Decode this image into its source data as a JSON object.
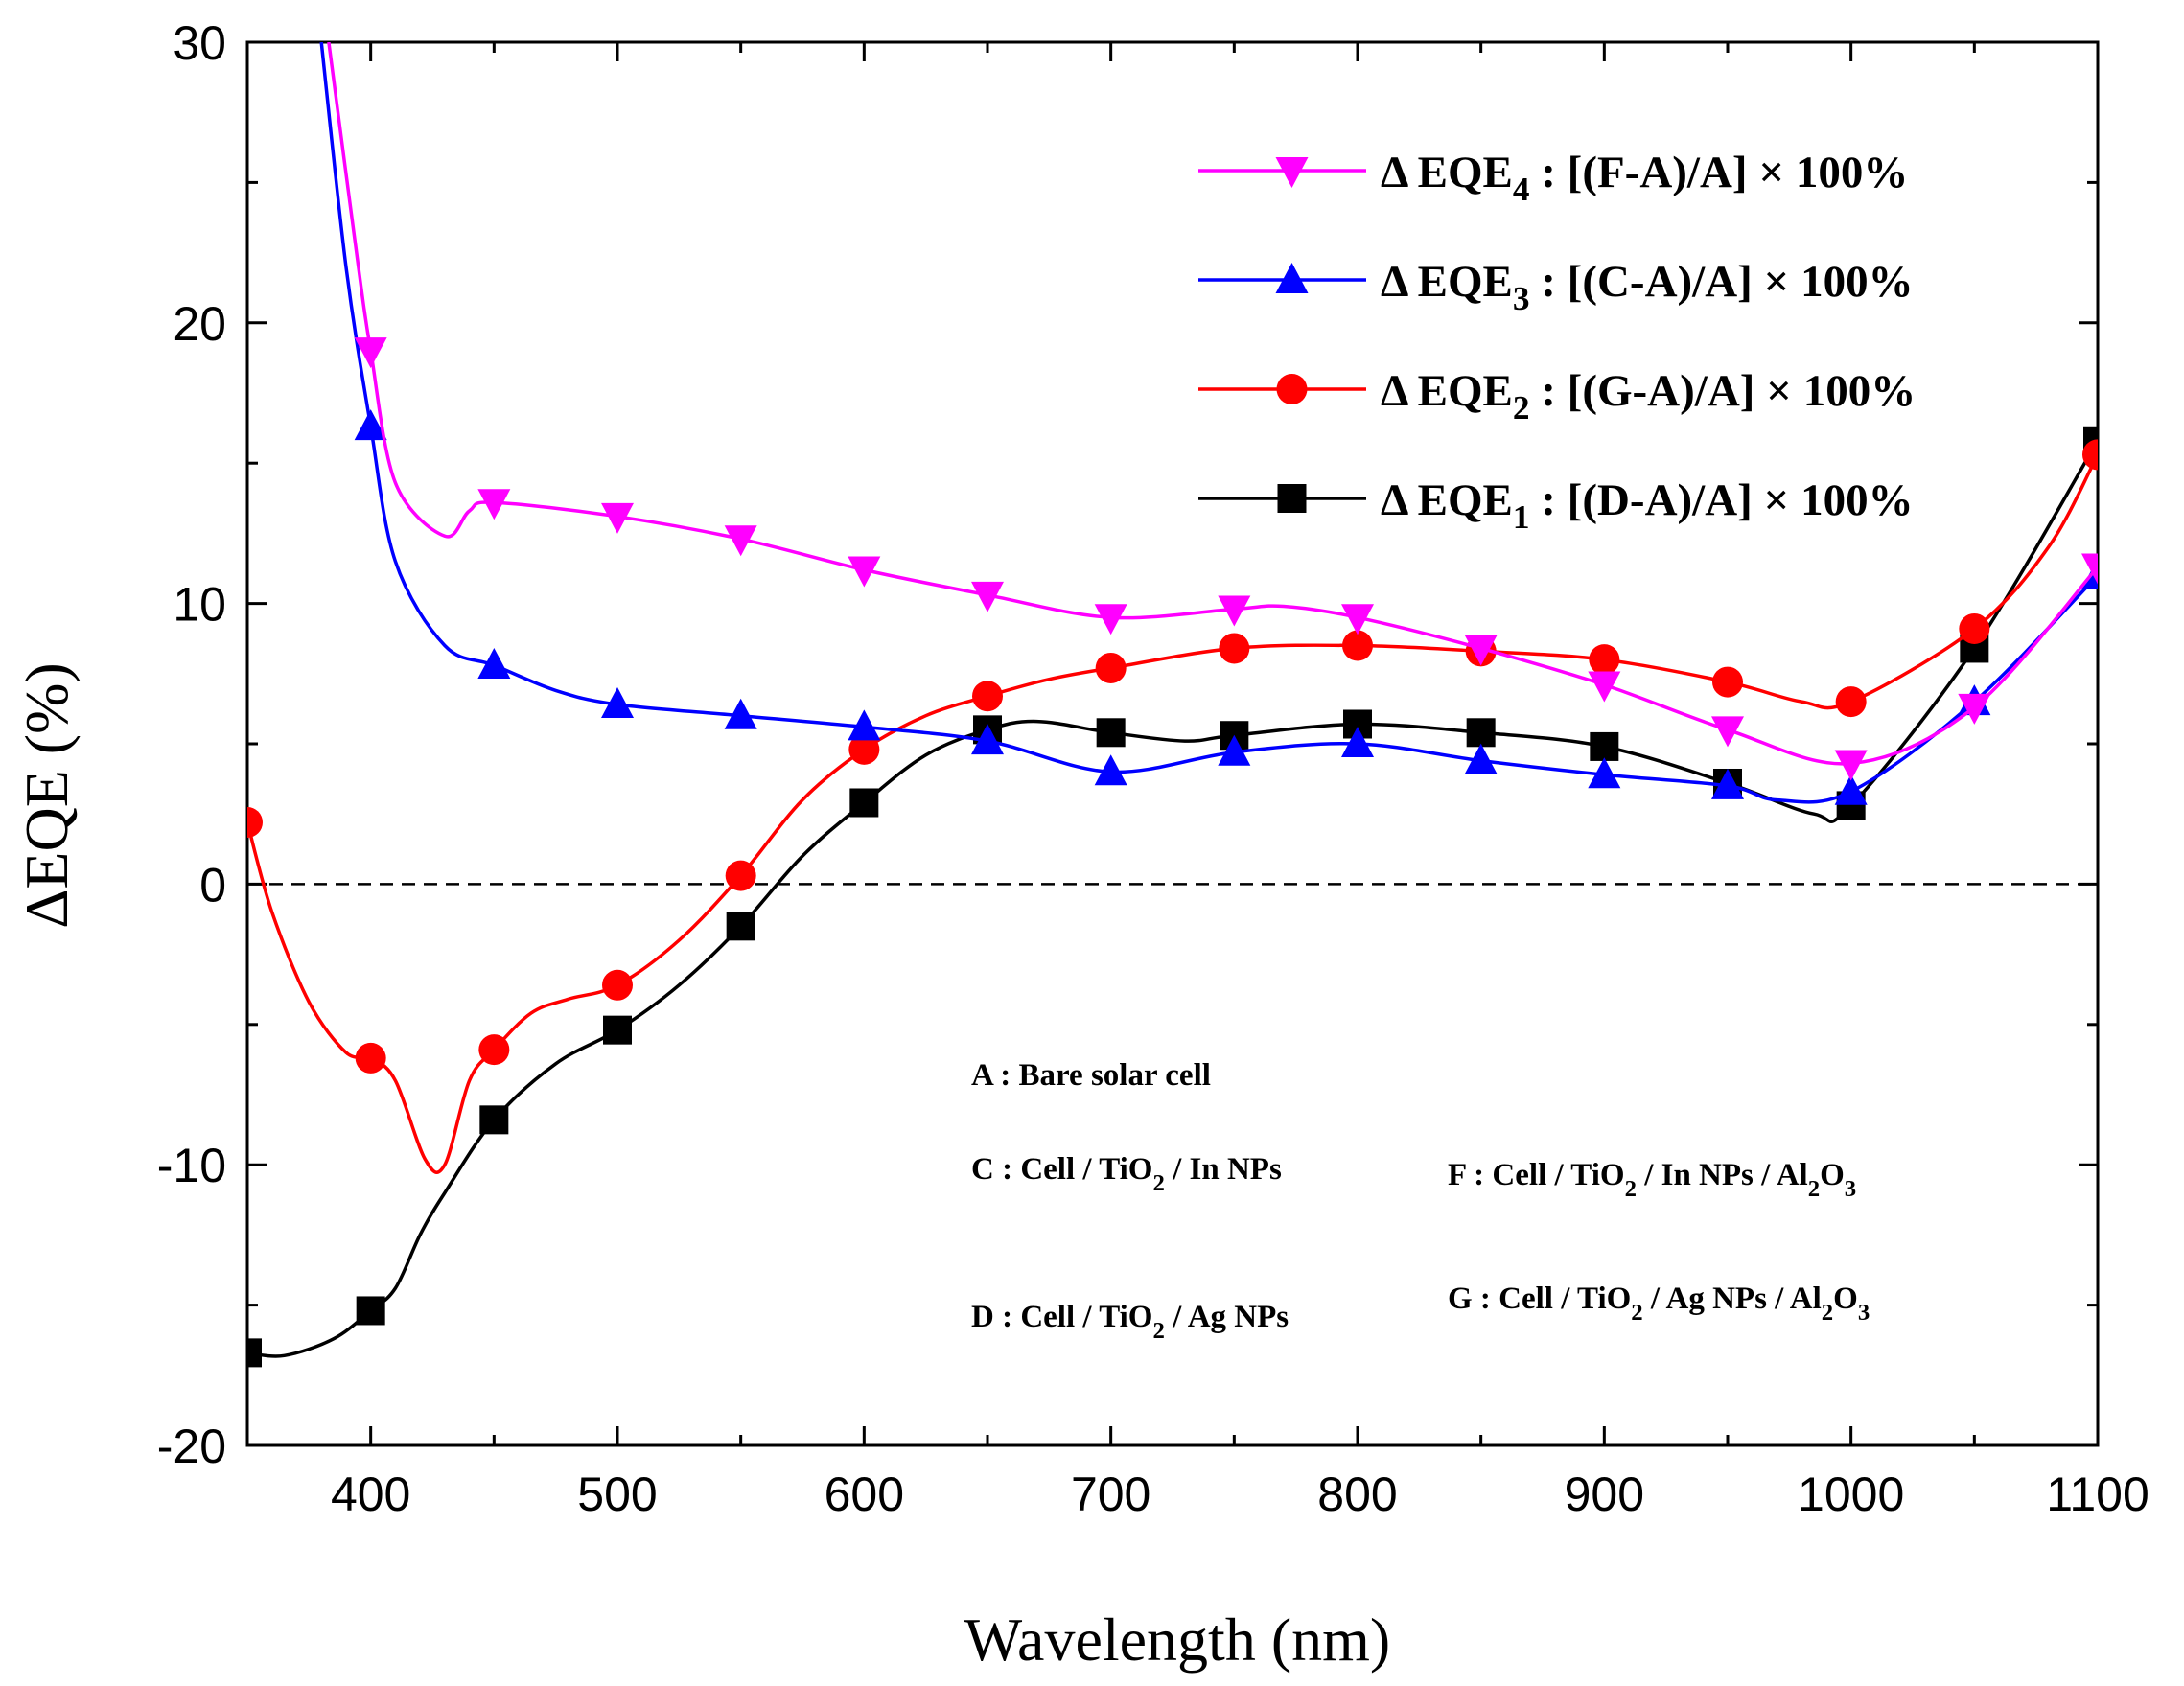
{
  "chart_data": {
    "type": "line",
    "xlabel": "Wavelength (nm)",
    "ylabel": "ΔEQE (%)",
    "xlim": [
      350,
      1100
    ],
    "ylim": [
      -20,
      30
    ],
    "x_ticks": [
      400,
      500,
      600,
      700,
      800,
      900,
      1000,
      1100
    ],
    "y_ticks": [
      -20,
      -10,
      0,
      10,
      20,
      30
    ],
    "x_tick_labels": [
      "400",
      "500",
      "600",
      "700",
      "800",
      "900",
      "1000",
      "1100"
    ],
    "y_tick_labels": [
      "-20",
      "-10",
      "0",
      "10",
      "20",
      "30"
    ],
    "reference_line": {
      "y": 0,
      "style": "dashed"
    },
    "legend_position": "top-right",
    "series": [
      {
        "id": "eqe4",
        "name": "Δ EQE4 : [(F-A)/A] × 100%",
        "label_prefix": "Δ EQE",
        "label_sub": "4",
        "label_suffix": " : [(F-A)/A] × 100%",
        "color": "#ff00ff",
        "marker": "triangle-down",
        "points": [
          [
            400,
            19.0
          ],
          [
            450,
            13.6
          ],
          [
            500,
            13.1
          ],
          [
            550,
            12.3
          ],
          [
            600,
            11.2
          ],
          [
            650,
            10.3
          ],
          [
            700,
            9.5
          ],
          [
            750,
            9.8
          ],
          [
            800,
            9.5
          ],
          [
            850,
            8.4
          ],
          [
            900,
            7.1
          ],
          [
            950,
            5.5
          ],
          [
            1000,
            4.3
          ],
          [
            1050,
            6.3
          ],
          [
            1100,
            11.3
          ]
        ],
        "curve": [
          [
            383,
            30
          ],
          [
            395,
            22
          ],
          [
            400,
            19.0
          ],
          [
            410,
            14.3
          ],
          [
            430,
            12.4
          ],
          [
            440,
            13.3
          ],
          [
            450,
            13.6
          ],
          [
            500,
            13.1
          ],
          [
            550,
            12.3
          ],
          [
            600,
            11.2
          ],
          [
            650,
            10.3
          ],
          [
            700,
            9.5
          ],
          [
            750,
            9.8
          ],
          [
            770,
            9.9
          ],
          [
            800,
            9.5
          ],
          [
            850,
            8.4
          ],
          [
            900,
            7.1
          ],
          [
            950,
            5.5
          ],
          [
            1000,
            4.3
          ],
          [
            1050,
            6.3
          ],
          [
            1100,
            11.3
          ]
        ]
      },
      {
        "id": "eqe3",
        "name": "Δ EQE3 : [(C-A)/A] × 100%",
        "label_prefix": "Δ EQE",
        "label_sub": "3",
        "label_suffix": " : [(C-A)/A] × 100%",
        "color": "#0000ff",
        "marker": "triangle-up",
        "points": [
          [
            400,
            16.3
          ],
          [
            450,
            7.8
          ],
          [
            500,
            6.4
          ],
          [
            550,
            6.0
          ],
          [
            600,
            5.6
          ],
          [
            650,
            5.1
          ],
          [
            700,
            4.0
          ],
          [
            750,
            4.7
          ],
          [
            800,
            5.0
          ],
          [
            850,
            4.4
          ],
          [
            900,
            3.9
          ],
          [
            950,
            3.5
          ],
          [
            1000,
            3.3
          ],
          [
            1050,
            6.5
          ],
          [
            1100,
            11.0
          ]
        ],
        "curve": [
          [
            380,
            30
          ],
          [
            390,
            22
          ],
          [
            400,
            16.3
          ],
          [
            410,
            11.5
          ],
          [
            430,
            8.5
          ],
          [
            450,
            7.8
          ],
          [
            475,
            6.9
          ],
          [
            500,
            6.4
          ],
          [
            550,
            6.0
          ],
          [
            600,
            5.6
          ],
          [
            650,
            5.1
          ],
          [
            700,
            4.0
          ],
          [
            750,
            4.7
          ],
          [
            800,
            5.0
          ],
          [
            850,
            4.4
          ],
          [
            900,
            3.9
          ],
          [
            950,
            3.5
          ],
          [
            970,
            3.0
          ],
          [
            1000,
            3.3
          ],
          [
            1050,
            6.5
          ],
          [
            1100,
            11.0
          ]
        ]
      },
      {
        "id": "eqe2",
        "name": "Δ EQE2 : [(G-A)/A] × 100%",
        "label_prefix": "Δ EQE",
        "label_sub": "2",
        "label_suffix": " : [(G-A)/A] × 100%",
        "color": "#ff0000",
        "marker": "circle",
        "points": [
          [
            350,
            2.2
          ],
          [
            400,
            -6.2
          ],
          [
            450,
            -5.9
          ],
          [
            500,
            -3.6
          ],
          [
            550,
            0.3
          ],
          [
            600,
            4.8
          ],
          [
            650,
            6.7
          ],
          [
            700,
            7.7
          ],
          [
            750,
            8.4
          ],
          [
            800,
            8.5
          ],
          [
            850,
            8.3
          ],
          [
            900,
            8.0
          ],
          [
            950,
            7.2
          ],
          [
            1000,
            6.5
          ],
          [
            1050,
            9.1
          ],
          [
            1100,
            15.3
          ]
        ],
        "curve": [
          [
            350,
            2.2
          ],
          [
            360,
            -1.0
          ],
          [
            375,
            -4.2
          ],
          [
            390,
            -6.0
          ],
          [
            400,
            -6.2
          ],
          [
            410,
            -7.0
          ],
          [
            422,
            -9.8
          ],
          [
            430,
            -10.0
          ],
          [
            440,
            -7.0
          ],
          [
            450,
            -5.9
          ],
          [
            465,
            -4.6
          ],
          [
            480,
            -4.1
          ],
          [
            500,
            -3.6
          ],
          [
            525,
            -2.0
          ],
          [
            550,
            0.3
          ],
          [
            575,
            3.0
          ],
          [
            600,
            4.8
          ],
          [
            625,
            6.0
          ],
          [
            650,
            6.7
          ],
          [
            675,
            7.3
          ],
          [
            700,
            7.7
          ],
          [
            750,
            8.4
          ],
          [
            800,
            8.5
          ],
          [
            850,
            8.3
          ],
          [
            900,
            8.0
          ],
          [
            950,
            7.2
          ],
          [
            980,
            6.5
          ],
          [
            1000,
            6.5
          ],
          [
            1050,
            9.1
          ],
          [
            1080,
            12.0
          ],
          [
            1100,
            15.3
          ]
        ]
      },
      {
        "id": "eqe1",
        "name": "Δ EQE1 : [(D-A)/A] × 100%",
        "label_prefix": "Δ EQE",
        "label_sub": "1",
        "label_suffix": " : [(D-A)/A] × 100%",
        "color": "#000000",
        "marker": "square",
        "points": [
          [
            350,
            -16.7
          ],
          [
            400,
            -15.2
          ],
          [
            450,
            -8.4
          ],
          [
            500,
            -5.2
          ],
          [
            550,
            -1.5
          ],
          [
            600,
            2.9
          ],
          [
            650,
            5.5
          ],
          [
            700,
            5.4
          ],
          [
            750,
            5.3
          ],
          [
            800,
            5.7
          ],
          [
            850,
            5.4
          ],
          [
            900,
            4.9
          ],
          [
            950,
            3.6
          ],
          [
            1000,
            2.8
          ],
          [
            1050,
            8.4
          ],
          [
            1100,
            15.8
          ]
        ],
        "curve": [
          [
            350,
            -16.7
          ],
          [
            365,
            -16.8
          ],
          [
            385,
            -16.2
          ],
          [
            400,
            -15.2
          ],
          [
            410,
            -14.4
          ],
          [
            420,
            -12.5
          ],
          [
            430,
            -11.0
          ],
          [
            450,
            -8.4
          ],
          [
            475,
            -6.4
          ],
          [
            500,
            -5.2
          ],
          [
            525,
            -3.6
          ],
          [
            550,
            -1.5
          ],
          [
            575,
            1.0
          ],
          [
            600,
            2.9
          ],
          [
            625,
            4.6
          ],
          [
            650,
            5.5
          ],
          [
            670,
            5.8
          ],
          [
            700,
            5.4
          ],
          [
            730,
            5.1
          ],
          [
            750,
            5.3
          ],
          [
            800,
            5.7
          ],
          [
            850,
            5.4
          ],
          [
            900,
            4.9
          ],
          [
            950,
            3.6
          ],
          [
            985,
            2.5
          ],
          [
            1000,
            2.8
          ],
          [
            1050,
            8.4
          ],
          [
            1100,
            15.8
          ]
        ]
      }
    ],
    "annotations": [
      {
        "id": "anno-a",
        "text": "A : Bare solar cell"
      },
      {
        "id": "anno-c",
        "text": "C : Cell / TiO2 / In NPs"
      },
      {
        "id": "anno-d",
        "text": "D : Cell / TiO2 / Ag NPs"
      },
      {
        "id": "anno-f",
        "text": "F : Cell / TiO2 / In NPs / Al2O3"
      },
      {
        "id": "anno-g",
        "text": "G : Cell / TiO2 / Ag NPs / Al2O3"
      }
    ]
  }
}
